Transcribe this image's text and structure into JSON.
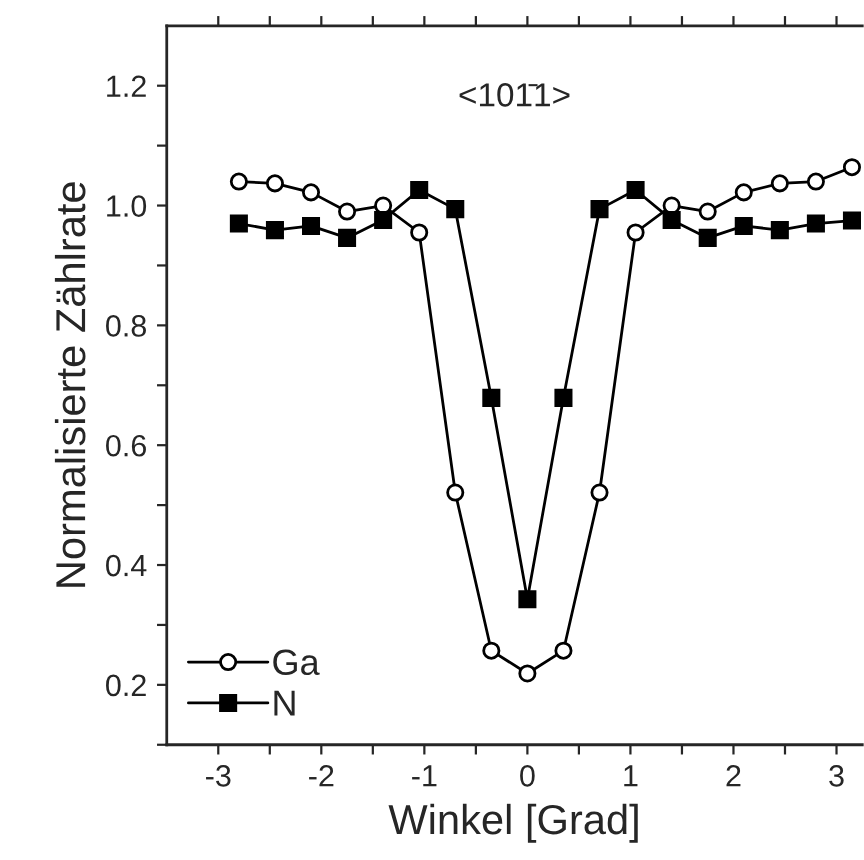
{
  "chart_data": {
    "type": "line",
    "title": "<101̄1>",
    "xlabel": "Winkel [Grad]",
    "ylabel": "Normalisierte Zählrate",
    "x": [
      -2.8,
      -2.45,
      -2.1,
      -1.75,
      -1.4,
      -1.05,
      -0.7,
      -0.35,
      0,
      0.35,
      0.7,
      1.05,
      1.4,
      1.75,
      2.1,
      2.45,
      2.8,
      3.15
    ],
    "series": [
      {
        "name": "Ga",
        "color": "#000000",
        "marker": "circle",
        "values": [
          1.04,
          1.037,
          1.022,
          0.99,
          1.0,
          0.955,
          0.521,
          0.257,
          0.219,
          0.257,
          0.521,
          0.955,
          1.0,
          0.99,
          1.022,
          1.037,
          1.04,
          1.064
        ]
      },
      {
        "name": "N",
        "color": "#000000",
        "marker": "square",
        "values": [
          0.97,
          0.959,
          0.966,
          0.946,
          0.976,
          1.026,
          0.994,
          0.679,
          0.343,
          0.679,
          0.994,
          1.026,
          0.976,
          0.946,
          0.966,
          0.959,
          0.97,
          0.975
        ]
      }
    ],
    "xlim": [
      -3.5,
      3.25
    ],
    "ylim": [
      0.1,
      1.3
    ],
    "xticks": [
      -3,
      {
        "value": -2.5,
        "label": null
      },
      -2,
      {
        "value": -1.5,
        "label": null
      },
      -1,
      {
        "value": -0.5,
        "label": null
      },
      0,
      {
        "value": 0.5,
        "label": null
      },
      1,
      {
        "value": 1.5,
        "label": null
      },
      2,
      {
        "value": 2.5,
        "label": null
      },
      3
    ],
    "yticks": [
      {
        "value": 0.1,
        "label": null
      },
      0.2,
      {
        "value": 0.3,
        "label": null
      },
      0.4,
      {
        "value": 0.5,
        "label": null
      },
      0.6,
      {
        "value": 0.7,
        "label": null
      },
      0.8,
      {
        "value": 0.9,
        "label": null
      },
      {
        "value": 1.0,
        "label": "1.0"
      },
      {
        "value": 1.1,
        "label": null
      },
      1.2
    ],
    "legend": "bottom left",
    "grid": false
  }
}
